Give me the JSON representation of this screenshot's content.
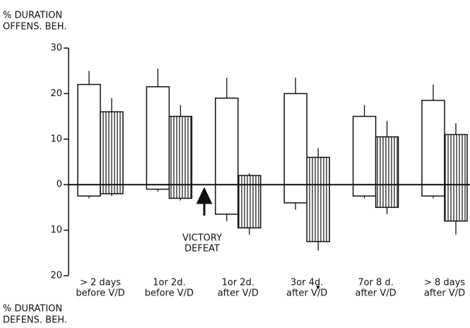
{
  "chart_data": {
    "type": "bar",
    "y_label_top": [
      "% DURATION",
      "OFFENS. BEH."
    ],
    "y_label_bottom": [
      "% DURATION",
      "DEFENS. BEH."
    ],
    "categories": [
      [
        "> 2 days",
        "before V/D"
      ],
      [
        "1or 2d.",
        "before V/D"
      ],
      [
        "1or 2d.",
        "after V/D"
      ],
      [
        "3or 4d.",
        "after V/D"
      ],
      [
        "7or 8 d.",
        "after V/D"
      ],
      [
        "> 8 days",
        "after V/D"
      ]
    ],
    "series": [
      {
        "color": "#ffffff",
        "values": [
          22,
          21.5,
          19,
          20,
          15,
          18.5
        ],
        "errors": [
          3,
          4,
          4.5,
          3.5,
          2.5,
          3.5
        ]
      },
      {
        "color": "hatch",
        "values": [
          16,
          15,
          2,
          6,
          10.5,
          11
        ],
        "errors": [
          3,
          2.5,
          0.5,
          2,
          3.5,
          2.5
        ]
      },
      {
        "color": "#ffffff",
        "values": [
          -2.5,
          -1,
          -6.5,
          -4,
          -2.5,
          -2.5
        ],
        "errors": [
          0.5,
          0.5,
          1.5,
          1.5,
          0.5,
          0.5
        ]
      },
      {
        "color": "hatch",
        "values": [
          -2,
          -3,
          -9.5,
          -12.5,
          -5,
          -8
        ],
        "errors": [
          0.5,
          0.5,
          1.5,
          2,
          1.5,
          3
        ]
      }
    ],
    "annotations": [
      "VICTORY",
      "DEFEAT"
    ],
    "significance": [
      "▾▾",
      "▾"
    ],
    "ylim": [
      -20,
      30
    ],
    "yticks": [
      {
        "value": -20,
        "label": "20"
      },
      {
        "value": -10,
        "label": "10"
      },
      0,
      10,
      20,
      30
    ]
  }
}
